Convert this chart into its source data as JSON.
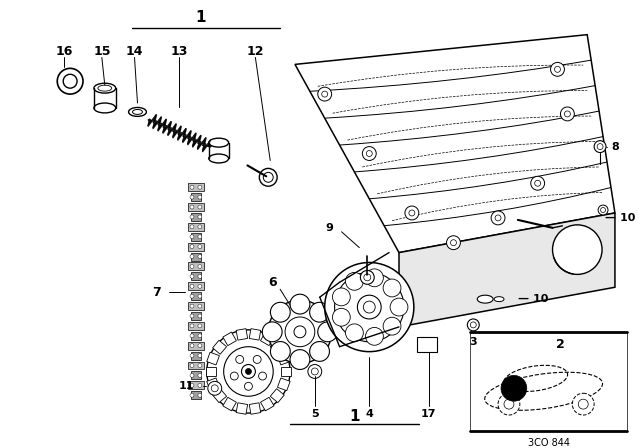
{
  "bg_color": "#ffffff",
  "line_color": "#000000",
  "fig_width": 6.4,
  "fig_height": 4.48,
  "dpi": 100,
  "diagram_code": "3CO 844"
}
